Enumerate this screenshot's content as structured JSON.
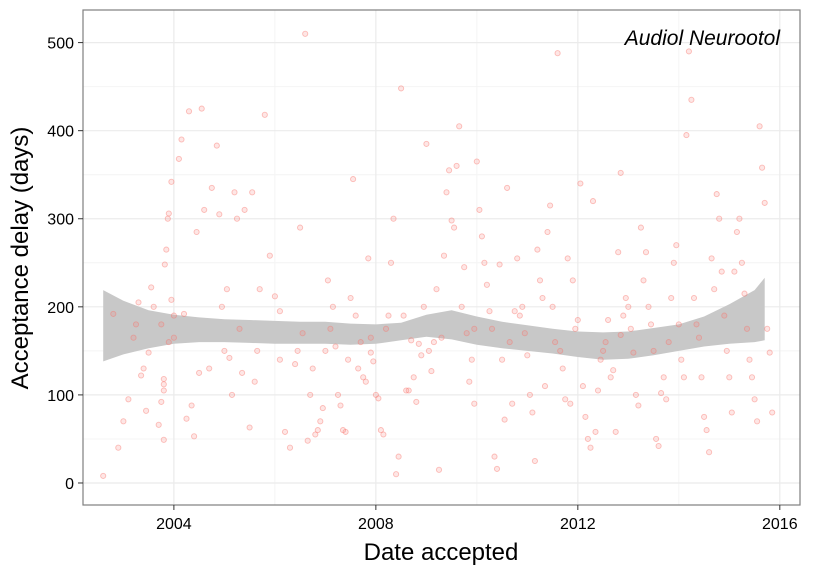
{
  "chart_data": {
    "type": "scatter",
    "title": "",
    "annotation": "Audiol Neurootol",
    "xlabel": "Date accepted",
    "ylabel": "Acceptance delay (days)",
    "xlim": [
      2002.2,
      2016.4
    ],
    "ylim": [
      -25,
      537
    ],
    "xticks": [
      2004,
      2008,
      2012,
      2016
    ],
    "xtick_labels": [
      "2004",
      "2008",
      "2012",
      "2016"
    ],
    "yticks": [
      0,
      100,
      200,
      300,
      400,
      500
    ],
    "ytick_labels": [
      "0",
      "100",
      "200",
      "300",
      "400",
      "500"
    ],
    "grid": true,
    "legend": "none",
    "colors": {
      "points": "#f8766d",
      "band": "#c8c8c8",
      "grid_major": "#ebebeb",
      "grid_minor": "#f4f4f4",
      "panel_border": "#7f7f7f"
    },
    "smooth_band": {
      "x": [
        2002.6,
        2003.0,
        2003.5,
        2004.0,
        2004.5,
        2005.0,
        2005.5,
        2006.0,
        2006.5,
        2007.0,
        2007.5,
        2008.0,
        2008.5,
        2009.0,
        2009.5,
        2010.0,
        2010.5,
        2011.0,
        2011.5,
        2012.0,
        2012.5,
        2013.0,
        2013.5,
        2014.0,
        2014.5,
        2015.0,
        2015.5,
        2015.7
      ],
      "lower": [
        138,
        146,
        153,
        158,
        160,
        160,
        159,
        158,
        158,
        158,
        157,
        158,
        162,
        166,
        163,
        157,
        153,
        150,
        147,
        143,
        140,
        141,
        145,
        150,
        155,
        158,
        160,
        162
      ],
      "upper": [
        219,
        207,
        196,
        191,
        188,
        186,
        185,
        184,
        183,
        183,
        181,
        180,
        182,
        191,
        196,
        189,
        183,
        179,
        175,
        172,
        171,
        172,
        176,
        180,
        189,
        203,
        219,
        233
      ]
    },
    "points": [
      [
        2002.6,
        8
      ],
      [
        2002.8,
        192
      ],
      [
        2002.9,
        40
      ],
      [
        2003.0,
        70
      ],
      [
        2003.1,
        95
      ],
      [
        2003.2,
        165
      ],
      [
        2003.25,
        180
      ],
      [
        2003.3,
        205
      ],
      [
        2003.35,
        122
      ],
      [
        2003.4,
        130
      ],
      [
        2003.45,
        82
      ],
      [
        2003.5,
        148
      ],
      [
        2003.55,
        222
      ],
      [
        2003.6,
        200
      ],
      [
        2003.7,
        66
      ],
      [
        2003.75,
        180
      ],
      [
        2003.8,
        118
      ],
      [
        2003.9,
        160
      ],
      [
        2004.0,
        190
      ],
      [
        2003.95,
        208
      ],
      [
        2003.8,
        49
      ],
      [
        2003.75,
        92
      ],
      [
        2004.0,
        165
      ],
      [
        2003.8,
        112
      ],
      [
        2003.8,
        105
      ],
      [
        2003.82,
        248
      ],
      [
        2003.85,
        265
      ],
      [
        2003.88,
        300
      ],
      [
        2003.9,
        306
      ],
      [
        2003.95,
        342
      ],
      [
        2004.1,
        368
      ],
      [
        2004.15,
        390
      ],
      [
        2004.2,
        192
      ],
      [
        2004.3,
        422
      ],
      [
        2004.4,
        53
      ],
      [
        2004.35,
        88
      ],
      [
        2004.45,
        285
      ],
      [
        2004.5,
        125
      ],
      [
        2004.55,
        425
      ],
      [
        2004.6,
        310
      ],
      [
        2004.7,
        130
      ],
      [
        2004.75,
        335
      ],
      [
        2004.85,
        383
      ],
      [
        2004.9,
        305
      ],
      [
        2004.95,
        200
      ],
      [
        2005.0,
        150
      ],
      [
        2005.05,
        220
      ],
      [
        2005.1,
        142
      ],
      [
        2005.15,
        100
      ],
      [
        2005.2,
        330
      ],
      [
        2005.25,
        300
      ],
      [
        2005.3,
        175
      ],
      [
        2005.35,
        125
      ],
      [
        2005.4,
        310
      ],
      [
        2005.5,
        63
      ],
      [
        2005.55,
        330
      ],
      [
        2005.65,
        150
      ],
      [
        2005.7,
        220
      ],
      [
        2005.8,
        418
      ],
      [
        2005.9,
        258
      ],
      [
        2006.0,
        212
      ],
      [
        2006.1,
        195
      ],
      [
        2006.2,
        58
      ],
      [
        2006.3,
        40
      ],
      [
        2006.4,
        135
      ],
      [
        2006.45,
        150
      ],
      [
        2006.5,
        290
      ],
      [
        2006.55,
        170
      ],
      [
        2006.6,
        510
      ],
      [
        2006.65,
        48
      ],
      [
        2006.7,
        100
      ],
      [
        2006.75,
        130
      ],
      [
        2006.8,
        55
      ],
      [
        2006.85,
        60
      ],
      [
        2006.9,
        70
      ],
      [
        2006.95,
        85
      ],
      [
        2007.0,
        150
      ],
      [
        2007.05,
        230
      ],
      [
        2007.1,
        175
      ],
      [
        2007.15,
        200
      ],
      [
        2007.2,
        155
      ],
      [
        2007.25,
        100
      ],
      [
        2007.3,
        88
      ],
      [
        2007.35,
        60
      ],
      [
        2007.4,
        58
      ],
      [
        2007.45,
        140
      ],
      [
        2007.5,
        210
      ],
      [
        2007.55,
        345
      ],
      [
        2007.6,
        190
      ],
      [
        2007.65,
        130
      ],
      [
        2007.7,
        160
      ],
      [
        2007.75,
        120
      ],
      [
        2007.8,
        115
      ],
      [
        2007.85,
        255
      ],
      [
        2007.9,
        148
      ],
      [
        2007.95,
        138
      ],
      [
        2008.0,
        100
      ],
      [
        2008.05,
        96
      ],
      [
        2008.1,
        60
      ],
      [
        2008.15,
        55
      ],
      [
        2008.2,
        175
      ],
      [
        2008.25,
        190
      ],
      [
        2008.3,
        250
      ],
      [
        2008.35,
        300
      ],
      [
        2008.4,
        10
      ],
      [
        2008.45,
        30
      ],
      [
        2008.5,
        448
      ],
      [
        2008.55,
        190
      ],
      [
        2008.6,
        105
      ],
      [
        2008.65,
        105
      ],
      [
        2008.7,
        162
      ],
      [
        2008.75,
        120
      ],
      [
        2008.8,
        92
      ],
      [
        2008.85,
        158
      ],
      [
        2008.9,
        145
      ],
      [
        2008.95,
        200
      ],
      [
        2009.0,
        385
      ],
      [
        2009.05,
        150
      ],
      [
        2009.1,
        127
      ],
      [
        2009.15,
        160
      ],
      [
        2009.2,
        220
      ],
      [
        2009.25,
        15
      ],
      [
        2009.3,
        165
      ],
      [
        2009.35,
        258
      ],
      [
        2009.4,
        330
      ],
      [
        2009.45,
        355
      ],
      [
        2009.5,
        298
      ],
      [
        2009.55,
        290
      ],
      [
        2009.6,
        360
      ],
      [
        2009.65,
        405
      ],
      [
        2009.7,
        200
      ],
      [
        2009.75,
        245
      ],
      [
        2009.8,
        170
      ],
      [
        2009.85,
        115
      ],
      [
        2009.9,
        140
      ],
      [
        2009.95,
        90
      ],
      [
        2010.0,
        365
      ],
      [
        2010.05,
        310
      ],
      [
        2010.1,
        280
      ],
      [
        2010.15,
        250
      ],
      [
        2010.2,
        225
      ],
      [
        2010.25,
        195
      ],
      [
        2010.3,
        175
      ],
      [
        2010.35,
        30
      ],
      [
        2010.4,
        16
      ],
      [
        2010.45,
        248
      ],
      [
        2010.5,
        140
      ],
      [
        2010.55,
        72
      ],
      [
        2010.6,
        335
      ],
      [
        2010.65,
        160
      ],
      [
        2010.7,
        90
      ],
      [
        2010.75,
        195
      ],
      [
        2010.8,
        255
      ],
      [
        2010.85,
        190
      ],
      [
        2010.9,
        200
      ],
      [
        2010.95,
        170
      ],
      [
        2011.0,
        145
      ],
      [
        2011.05,
        100
      ],
      [
        2011.1,
        80
      ],
      [
        2011.15,
        25
      ],
      [
        2011.2,
        265
      ],
      [
        2011.25,
        230
      ],
      [
        2011.3,
        210
      ],
      [
        2011.35,
        110
      ],
      [
        2011.4,
        285
      ],
      [
        2011.45,
        315
      ],
      [
        2011.5,
        200
      ],
      [
        2011.55,
        160
      ],
      [
        2011.6,
        488
      ],
      [
        2011.65,
        150
      ],
      [
        2011.7,
        130
      ],
      [
        2011.75,
        95
      ],
      [
        2011.8,
        255
      ],
      [
        2011.85,
        90
      ],
      [
        2011.9,
        230
      ],
      [
        2011.95,
        175
      ],
      [
        2012.0,
        185
      ],
      [
        2012.05,
        340
      ],
      [
        2012.1,
        110
      ],
      [
        2012.15,
        75
      ],
      [
        2012.2,
        50
      ],
      [
        2012.25,
        40
      ],
      [
        2012.3,
        320
      ],
      [
        2012.35,
        58
      ],
      [
        2012.4,
        105
      ],
      [
        2012.45,
        140
      ],
      [
        2012.5,
        150
      ],
      [
        2012.55,
        160
      ],
      [
        2012.6,
        185
      ],
      [
        2012.65,
        120
      ],
      [
        2012.7,
        128
      ],
      [
        2012.75,
        58
      ],
      [
        2012.8,
        262
      ],
      [
        2012.85,
        352
      ],
      [
        2012.9,
        190
      ],
      [
        2012.95,
        210
      ],
      [
        2013.0,
        200
      ],
      [
        2013.05,
        175
      ],
      [
        2013.1,
        148
      ],
      [
        2013.15,
        100
      ],
      [
        2013.2,
        88
      ],
      [
        2013.25,
        290
      ],
      [
        2013.3,
        230
      ],
      [
        2013.35,
        262
      ],
      [
        2013.4,
        200
      ],
      [
        2013.45,
        180
      ],
      [
        2013.5,
        150
      ],
      [
        2013.55,
        50
      ],
      [
        2013.6,
        42
      ],
      [
        2013.65,
        102
      ],
      [
        2013.7,
        120
      ],
      [
        2013.75,
        95
      ],
      [
        2013.8,
        160
      ],
      [
        2013.85,
        210
      ],
      [
        2013.9,
        250
      ],
      [
        2013.95,
        270
      ],
      [
        2014.0,
        180
      ],
      [
        2014.05,
        140
      ],
      [
        2014.1,
        120
      ],
      [
        2014.15,
        395
      ],
      [
        2014.2,
        490
      ],
      [
        2014.25,
        435
      ],
      [
        2014.3,
        210
      ],
      [
        2014.35,
        180
      ],
      [
        2014.4,
        165
      ],
      [
        2014.45,
        120
      ],
      [
        2014.5,
        75
      ],
      [
        2014.55,
        60
      ],
      [
        2014.6,
        35
      ],
      [
        2014.65,
        255
      ],
      [
        2014.7,
        220
      ],
      [
        2014.75,
        328
      ],
      [
        2014.8,
        300
      ],
      [
        2014.85,
        240
      ],
      [
        2014.9,
        190
      ],
      [
        2014.95,
        150
      ],
      [
        2015.0,
        120
      ],
      [
        2015.05,
        80
      ],
      [
        2015.1,
        240
      ],
      [
        2015.15,
        285
      ],
      [
        2015.2,
        300
      ],
      [
        2015.25,
        250
      ],
      [
        2015.3,
        215
      ],
      [
        2015.35,
        175
      ],
      [
        2015.4,
        140
      ],
      [
        2015.45,
        120
      ],
      [
        2015.5,
        95
      ],
      [
        2015.55,
        70
      ],
      [
        2015.6,
        405
      ],
      [
        2015.65,
        358
      ],
      [
        2015.7,
        318
      ],
      [
        2015.75,
        175
      ],
      [
        2015.8,
        148
      ],
      [
        2015.85,
        80
      ],
      [
        2004.25,
        73
      ],
      [
        2005.6,
        115
      ],
      [
        2006.1,
        140
      ],
      [
        2007.9,
        165
      ],
      [
        2009.95,
        175
      ],
      [
        2012.85,
        168
      ]
    ]
  }
}
